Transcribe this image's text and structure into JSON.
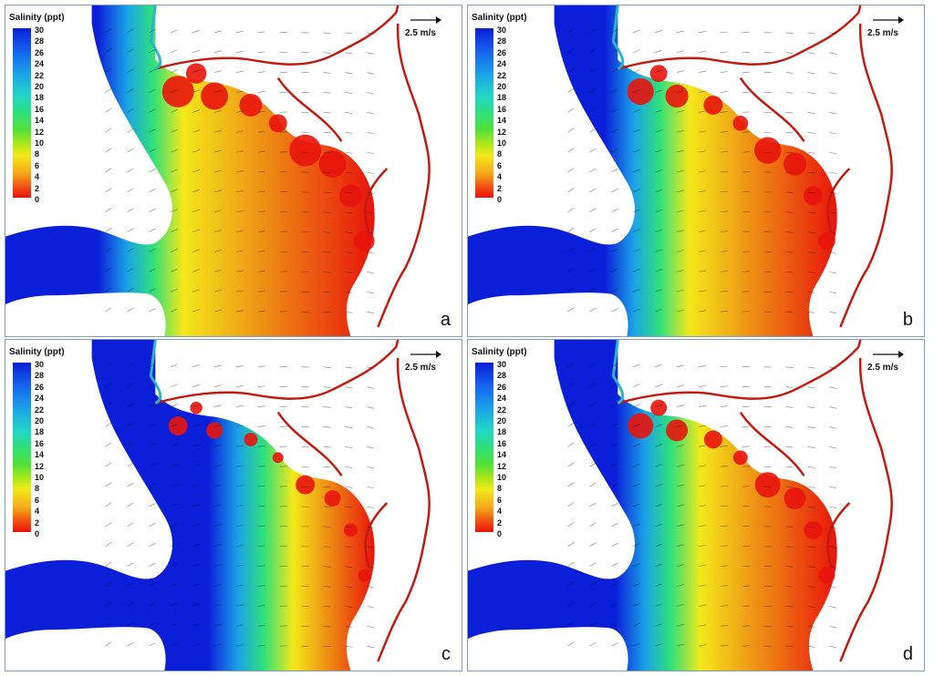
{
  "colors": {
    "high_salinity": "#0b1fd8",
    "mid_salinity": "#2fe07a",
    "low_salinity": "#e8140c",
    "river": "#c21a10",
    "land": "#ffffff",
    "frame": "#7a9cc6"
  },
  "legend": {
    "title": "Salinity (ppt)",
    "ticks": [
      "30",
      "28",
      "26",
      "24",
      "22",
      "20",
      "18",
      "16",
      "14",
      "12",
      "10",
      "8",
      "6",
      "4",
      "2",
      "0"
    ]
  },
  "scale": {
    "label": "2.5 m/s"
  },
  "panels": [
    {
      "letter": "a",
      "fresh_extent": 0.75
    },
    {
      "letter": "b",
      "fresh_extent": 0.55
    },
    {
      "letter": "c",
      "fresh_extent": 0.25
    },
    {
      "letter": "d",
      "fresh_extent": 0.5
    }
  ]
}
